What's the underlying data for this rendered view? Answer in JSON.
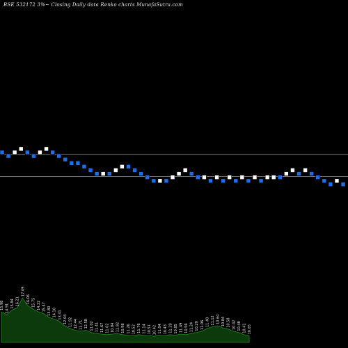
{
  "chart_data": {
    "type": "renko",
    "title": "BSE 532172  3%~  Closing Daily data  Renko  charts MunafaSutra.com",
    "up_color": "#ffffff",
    "down_color": "#1e6ee8",
    "level_line_color": "#b5651d",
    "volume_fill_color": "#0d3a0d",
    "volume_line_color": "#1f8a1f",
    "bricks": [
      {
        "col": 0,
        "level": 0,
        "dir": "down"
      },
      {
        "col": 1,
        "level": 1,
        "dir": "down"
      },
      {
        "col": 2,
        "level": 0,
        "dir": "up"
      },
      {
        "col": 3,
        "level": -1,
        "dir": "up"
      },
      {
        "col": 4,
        "level": 0,
        "dir": "down"
      },
      {
        "col": 5,
        "level": 1,
        "dir": "down"
      },
      {
        "col": 6,
        "level": 0,
        "dir": "up"
      },
      {
        "col": 7,
        "level": -1,
        "dir": "up"
      },
      {
        "col": 8,
        "level": 0,
        "dir": "down"
      },
      {
        "col": 9,
        "level": 1,
        "dir": "down"
      },
      {
        "col": 10,
        "level": 2,
        "dir": "down"
      },
      {
        "col": 11,
        "level": 3,
        "dir": "down"
      },
      {
        "col": 12,
        "level": 3,
        "dir": "down"
      },
      {
        "col": 13,
        "level": 4,
        "dir": "down"
      },
      {
        "col": 14,
        "level": 5,
        "dir": "down"
      },
      {
        "col": 15,
        "level": 6,
        "dir": "down"
      },
      {
        "col": 16,
        "level": 6,
        "dir": "up"
      },
      {
        "col": 17,
        "level": 6,
        "dir": "down"
      },
      {
        "col": 18,
        "level": 5,
        "dir": "up"
      },
      {
        "col": 19,
        "level": 4,
        "dir": "up"
      },
      {
        "col": 20,
        "level": 4,
        "dir": "down"
      },
      {
        "col": 21,
        "level": 5,
        "dir": "down"
      },
      {
        "col": 22,
        "level": 6,
        "dir": "down"
      },
      {
        "col": 23,
        "level": 7,
        "dir": "down"
      },
      {
        "col": 24,
        "level": 8,
        "dir": "down"
      },
      {
        "col": 25,
        "level": 8,
        "dir": "up"
      },
      {
        "col": 26,
        "level": 8,
        "dir": "down"
      },
      {
        "col": 27,
        "level": 7,
        "dir": "up"
      },
      {
        "col": 28,
        "level": 6,
        "dir": "up"
      },
      {
        "col": 29,
        "level": 5,
        "dir": "up"
      },
      {
        "col": 30,
        "level": 6,
        "dir": "down"
      },
      {
        "col": 31,
        "level": 7,
        "dir": "down"
      },
      {
        "col": 32,
        "level": 7,
        "dir": "up"
      },
      {
        "col": 33,
        "level": 8,
        "dir": "down"
      },
      {
        "col": 34,
        "level": 7,
        "dir": "up"
      },
      {
        "col": 35,
        "level": 8,
        "dir": "down"
      },
      {
        "col": 36,
        "level": 7,
        "dir": "up"
      },
      {
        "col": 37,
        "level": 8,
        "dir": "down"
      },
      {
        "col": 38,
        "level": 7,
        "dir": "up"
      },
      {
        "col": 39,
        "level": 8,
        "dir": "down"
      },
      {
        "col": 40,
        "level": 7,
        "dir": "up"
      },
      {
        "col": 41,
        "level": 8,
        "dir": "down"
      },
      {
        "col": 42,
        "level": 7,
        "dir": "up"
      },
      {
        "col": 43,
        "level": 7,
        "dir": "up"
      },
      {
        "col": 44,
        "level": 7,
        "dir": "down"
      },
      {
        "col": 45,
        "level": 6,
        "dir": "up"
      },
      {
        "col": 46,
        "level": 5,
        "dir": "up"
      },
      {
        "col": 47,
        "level": 6,
        "dir": "down"
      },
      {
        "col": 48,
        "level": 5,
        "dir": "up"
      },
      {
        "col": 49,
        "level": 6,
        "dir": "down"
      },
      {
        "col": 50,
        "level": 7,
        "dir": "down"
      },
      {
        "col": 51,
        "level": 8,
        "dir": "down"
      },
      {
        "col": 52,
        "level": 9,
        "dir": "down"
      },
      {
        "col": 53,
        "level": 8,
        "dir": "up"
      },
      {
        "col": 54,
        "level": 9,
        "dir": "down"
      }
    ],
    "reference_lines": [
      "upper",
      "lower"
    ],
    "volume": [
      {
        "label": "15.98",
        "v": 0.55
      },
      {
        "label": "14.91",
        "v": 0.5
      },
      {
        "label": "15.84",
        "v": 0.58
      },
      {
        "label": "16.21",
        "v": 0.62
      },
      {
        "label": "17.09",
        "v": 0.8
      },
      {
        "label": "16.06",
        "v": 0.66
      },
      {
        "label": "15.75",
        "v": 0.6
      },
      {
        "label": "14.22",
        "v": 0.55
      },
      {
        "label": "15.47",
        "v": 0.52
      },
      {
        "label": "13.80",
        "v": 0.45
      },
      {
        "label": "14.10",
        "v": 0.42
      },
      {
        "label": "13.41",
        "v": 0.38
      },
      {
        "label": "12.04",
        "v": 0.3
      },
      {
        "label": "11.92",
        "v": 0.25
      },
      {
        "label": "12.44",
        "v": 0.22
      },
      {
        "label": "11.71",
        "v": 0.2
      },
      {
        "label": "12.58",
        "v": 0.22
      },
      {
        "label": "11.02",
        "v": 0.18
      },
      {
        "label": "11.41",
        "v": 0.16
      },
      {
        "label": "11.67",
        "v": 0.15
      },
      {
        "label": "11.02",
        "v": 0.14
      },
      {
        "label": "10.84",
        "v": 0.15
      },
      {
        "label": "11.92",
        "v": 0.16
      },
      {
        "label": "10.98",
        "v": 0.14
      },
      {
        "label": "11.26",
        "v": 0.13
      },
      {
        "label": "10.52",
        "v": 0.12
      },
      {
        "label": "11.76",
        "v": 0.14
      },
      {
        "label": "11.14",
        "v": 0.13
      },
      {
        "label": "10.51",
        "v": 0.12
      },
      {
        "label": "10.42",
        "v": 0.11
      },
      {
        "label": "11.04",
        "v": 0.13
      },
      {
        "label": "10.43",
        "v": 0.12
      },
      {
        "label": "11.29",
        "v": 0.14
      },
      {
        "label": "10.85",
        "v": 0.13
      },
      {
        "label": "11.49",
        "v": 0.15
      },
      {
        "label": "10.56",
        "v": 0.14
      },
      {
        "label": "11.24",
        "v": 0.16
      },
      {
        "label": "10.29",
        "v": 0.18
      },
      {
        "label": "11.06",
        "v": 0.2
      },
      {
        "label": "11.40",
        "v": 0.25
      },
      {
        "label": "11.12",
        "v": 0.28
      },
      {
        "label": "10.64",
        "v": 0.3
      },
      {
        "label": "10.84",
        "v": 0.26
      },
      {
        "label": "10.58",
        "v": 0.24
      },
      {
        "label": "10.42",
        "v": 0.2
      },
      {
        "label": "10.48",
        "v": 0.18
      },
      {
        "label": "10.41",
        "v": 0.14
      },
      {
        "label": "10.05",
        "v": 0.12
      }
    ]
  }
}
